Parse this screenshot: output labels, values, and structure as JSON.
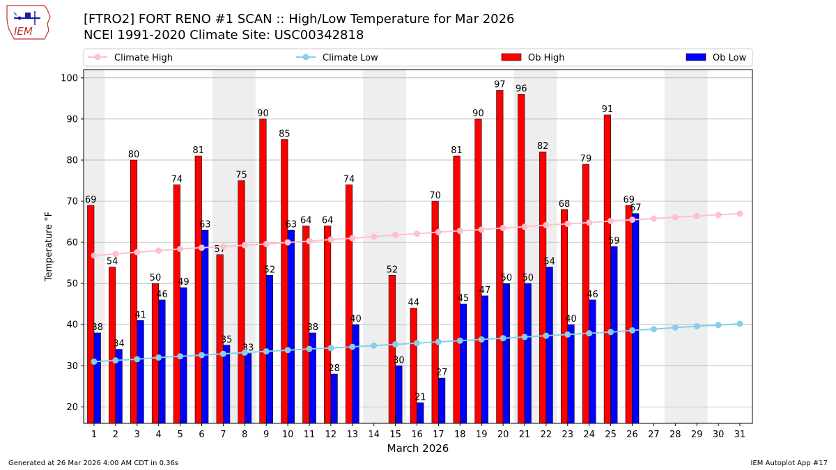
{
  "header": {
    "title_line1": "[FTRO2] FORT RENO #1 SCAN :: High/Low Temperature for Mar 2026",
    "title_line2": "NCEI 1991-2020 Climate Site: USC00342818",
    "logo_text": "IEM"
  },
  "footer": {
    "generated": "Generated at 26 Mar 2026 4:00 AM CDT in 0.36s",
    "app": "IEM Autoplot App #17"
  },
  "colors": {
    "ob_high": "#ff0000",
    "ob_low": "#0000ff",
    "climate_high": "#ffc0cb",
    "climate_low": "#87ceeb",
    "weekend_band": "#eeeeee",
    "grid": "#b0b0b0"
  },
  "chart_data": {
    "type": "bar",
    "title": "[FTRO2] FORT RENO #1 SCAN :: High/Low Temperature for Mar 2026",
    "subtitle": "NCEI 1991-2020 Climate Site: USC00342818",
    "xlabel": "March 2026",
    "ylabel": "Temperature °F",
    "ylim": [
      16,
      102
    ],
    "yticks": [
      20,
      30,
      40,
      50,
      60,
      70,
      80,
      90,
      100
    ],
    "grid": true,
    "legend_position": "top",
    "legend": [
      "Climate High",
      "Climate Low",
      "Ob High",
      "Ob Low"
    ],
    "categories": [
      "1",
      "2",
      "3",
      "4",
      "5",
      "6",
      "7",
      "8",
      "9",
      "10",
      "11",
      "12",
      "13",
      "14",
      "15",
      "16",
      "17",
      "18",
      "19",
      "20",
      "21",
      "22",
      "23",
      "24",
      "25",
      "26",
      "27",
      "28",
      "29",
      "30",
      "31"
    ],
    "shaded_days": [
      1,
      7,
      8,
      14,
      15,
      21,
      22,
      28,
      29
    ],
    "series": [
      {
        "name": "Ob High",
        "kind": "bar",
        "values": [
          69,
          54,
          80,
          50,
          74,
          81,
          57,
          75,
          90,
          85,
          64,
          64,
          74,
          null,
          52,
          44,
          70,
          81,
          90,
          97,
          96,
          82,
          68,
          79,
          91,
          69,
          null,
          null,
          null,
          null,
          null
        ],
        "labels": [
          "69",
          "54",
          "80",
          "50",
          "74",
          "81",
          "57",
          "75",
          "90",
          "85",
          "64",
          "64",
          "74",
          "",
          "52",
          "44",
          "70",
          "81",
          "90",
          "97",
          "96",
          "82",
          "68",
          "79",
          "91",
          "69",
          "",
          "",
          "",
          "",
          ""
        ]
      },
      {
        "name": "Ob Low",
        "kind": "bar",
        "values": [
          38,
          34,
          41,
          46,
          49,
          63,
          35,
          33,
          52,
          63,
          38,
          28,
          40,
          null,
          30,
          21,
          27,
          45,
          47,
          50,
          50,
          54,
          40,
          46,
          59,
          67,
          null,
          null,
          null,
          null,
          null
        ],
        "labels": [
          "38",
          "34",
          "41",
          "46",
          "49",
          "63",
          "35",
          "33",
          "52",
          "63",
          "38",
          "28",
          "40",
          "",
          "30",
          "21",
          "27",
          "45",
          "47",
          "50",
          "50",
          "54",
          "40",
          "46",
          "59",
          "67",
          "",
          "",
          "",
          "",
          ""
        ]
      },
      {
        "name": "Climate High",
        "kind": "line",
        "values": [
          56.8,
          57.2,
          57.6,
          58.0,
          58.4,
          58.7,
          59.0,
          59.3,
          59.6,
          60.0,
          60.3,
          60.7,
          61.0,
          61.4,
          61.8,
          62.1,
          62.5,
          62.8,
          63.1,
          63.5,
          63.8,
          64.2,
          64.5,
          64.8,
          65.2,
          65.5,
          65.8,
          66.1,
          66.4,
          66.7,
          67.0
        ]
      },
      {
        "name": "Climate Low",
        "kind": "line",
        "values": [
          31.0,
          31.3,
          31.6,
          32.0,
          32.3,
          32.6,
          32.9,
          33.2,
          33.5,
          33.8,
          34.1,
          34.3,
          34.6,
          34.9,
          35.2,
          35.5,
          35.8,
          36.1,
          36.4,
          36.7,
          37.0,
          37.3,
          37.6,
          37.9,
          38.2,
          38.6,
          38.9,
          39.3,
          39.6,
          39.9,
          40.2
        ]
      }
    ]
  }
}
